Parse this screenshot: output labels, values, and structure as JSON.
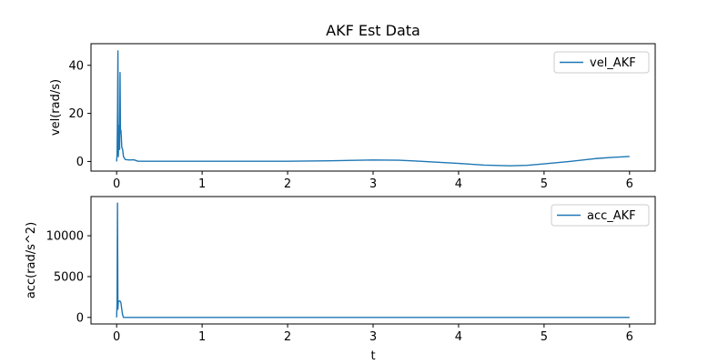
{
  "chart_data": {
    "title": "AKF Est Data",
    "subplots": [
      {
        "type": "line",
        "ylabel": "vel(rad/s)",
        "xlabel": "",
        "xlim": [
          -0.3,
          6.3
        ],
        "ylim": [
          -4,
          49
        ],
        "xticks": [
          0,
          1,
          2,
          3,
          4,
          5,
          6
        ],
        "yticks": [
          0,
          20,
          40
        ],
        "grid": false,
        "legend_position": "upper right",
        "series": [
          {
            "name": "vel_AKF",
            "color": "#1f77b4",
            "x": [
              0,
              0.005,
              0.01,
              0.015,
              0.02,
              0.025,
              0.03,
              0.035,
              0.04,
              0.045,
              0.05,
              0.055,
              0.06,
              0.07,
              0.08,
              0.1,
              0.15,
              0.2,
              0.25,
              0.3,
              0.5,
              1.0,
              1.5,
              2.0,
              2.5,
              3.0,
              3.3,
              3.5,
              4.0,
              4.3,
              4.6,
              4.8,
              5.0,
              5.3,
              5.6,
              5.8,
              6.0
            ],
            "y": [
              0,
              3,
              20,
              46,
              2,
              10,
              15,
              5,
              37,
              12,
              13,
              10,
              6,
              5,
              2,
              0.8,
              0.6,
              0.7,
              0.1,
              0.1,
              0.1,
              0.1,
              0.1,
              0.1,
              0.3,
              0.6,
              0.5,
              0.2,
              -0.8,
              -1.5,
              -1.8,
              -1.6,
              -1.0,
              0.0,
              1.2,
              1.7,
              2.1
            ]
          }
        ]
      },
      {
        "type": "line",
        "ylabel": "acc(rad/s^2)",
        "xlabel": "t",
        "xlim": [
          -0.3,
          6.3
        ],
        "ylim": [
          -800,
          14800
        ],
        "xticks": [
          0,
          1,
          2,
          3,
          4,
          5,
          6
        ],
        "yticks": [
          0,
          5000,
          10000
        ],
        "grid": false,
        "legend_position": "upper right",
        "series": [
          {
            "name": "acc_AKF",
            "color": "#1f77b4",
            "x": [
              0,
              0.005,
              0.01,
              0.015,
              0.02,
              0.03,
              0.04,
              0.05,
              0.06,
              0.07,
              0.08,
              0.1,
              0.5,
              1.0,
              2.0,
              3.0,
              4.0,
              5.0,
              6.0
            ],
            "y": [
              0,
              2000,
              14000,
              1000,
              2000,
              2000,
              2000,
              1800,
              1000,
              300,
              0,
              0,
              0,
              0,
              0,
              0,
              0,
              0,
              0
            ]
          }
        ]
      }
    ]
  }
}
